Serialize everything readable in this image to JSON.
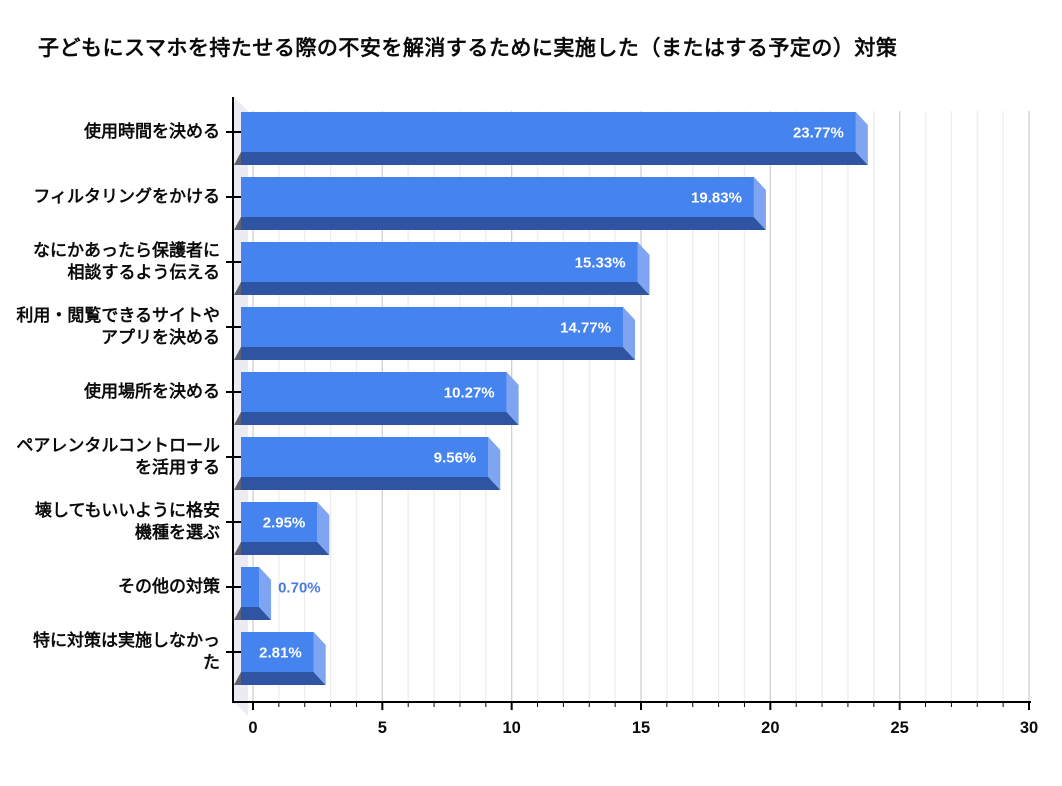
{
  "title": "子どもにスマホを持たせる際の不安を解消するために実施した（またはする予定の）対策",
  "chart_data": {
    "type": "bar",
    "orientation": "horizontal",
    "title": "子どもにスマホを持たせる際の不安を解消するために実施した（またはする予定の）対策",
    "categories": [
      "使用時間を決める",
      "フィルタリングをかける",
      "なにかあったら保護者に\n相談するよう伝える",
      "利用・閲覧できるサイトや\nアプリを決める",
      "使用場所を決める",
      "ペアレンタルコントロール\nを活用する",
      "壊してもいいように格安\n機種を選ぶ",
      "その他の対策",
      "特に対策は実施しなかっ\nた"
    ],
    "values": [
      23.77,
      19.83,
      15.33,
      14.77,
      10.27,
      9.56,
      2.95,
      0.7,
      2.81
    ],
    "value_labels": [
      "23.77%",
      "19.83%",
      "15.33%",
      "14.77%",
      "10.27%",
      "9.56%",
      "2.95%",
      "0.70%",
      "2.81%"
    ],
    "xlabel": "",
    "ylabel": "",
    "xlim": [
      0,
      30
    ],
    "x_major_ticks": [
      0,
      5,
      10,
      15,
      20,
      25,
      30
    ],
    "x_minor_step": 1,
    "grid": "vertical-minor-and-major",
    "legend": "none",
    "style_3d": true,
    "colors": {
      "bar_face": "#4584EE",
      "bar_side": "#7EA4F2",
      "bar_bottom": "#2F54A2",
      "bar_left_shadow": "#5E6373",
      "wall": "#EBEBF1",
      "grid_minor": "#EDEDF2",
      "grid_major": "#CFCFD6",
      "axis": "#000000",
      "value_label_inside": "#FFFFFF",
      "value_label_outside": "#4A7BE0",
      "text": "#0B0B0B"
    }
  }
}
